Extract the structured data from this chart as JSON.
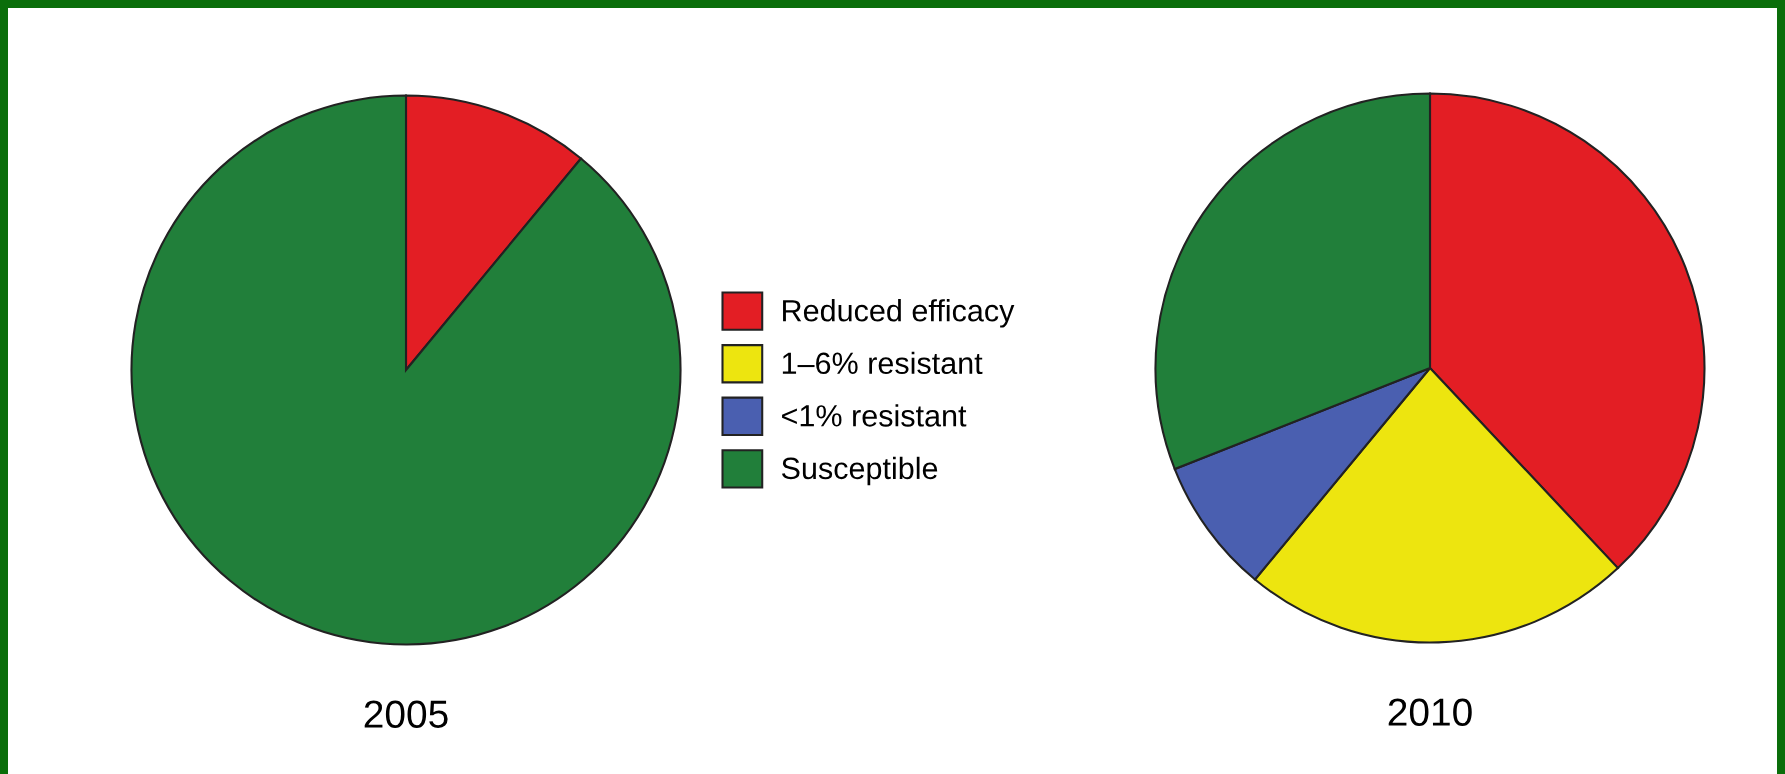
{
  "chart_data": [
    {
      "type": "pie",
      "title": "2005",
      "categories": [
        null,
        null
      ],
      "values": [
        11,
        89
      ],
      "colors": [
        "#e31e24",
        "#217f3a"
      ]
    },
    {
      "type": "pie",
      "title": "2010",
      "categories": [
        "Reduced efficacy",
        "1–6% resistant",
        "<1% resistant",
        "Susceptible"
      ],
      "values": [
        38,
        23,
        8,
        31
      ],
      "colors": [
        "#e31e24",
        "#ede50f",
        "#4a5fb0",
        "#217f3a"
      ],
      "legend": "left"
    }
  ]
}
